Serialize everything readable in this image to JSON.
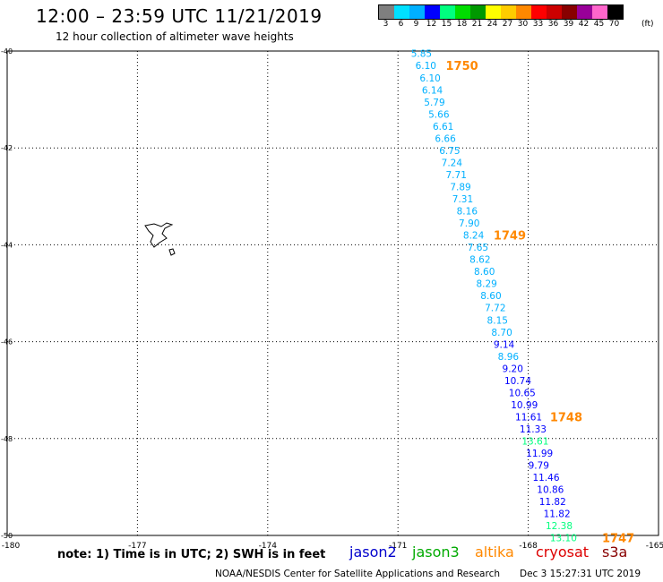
{
  "header": {
    "title": "12:00 – 23:59 UTC 11/21/2019",
    "subtitle": "12 hour collection of altimeter wave heights"
  },
  "scale": {
    "labels": [
      "3",
      "6",
      "9",
      "12",
      "15",
      "18",
      "21",
      "24",
      "27",
      "30",
      "33",
      "36",
      "39",
      "42",
      "45",
      "70"
    ],
    "unit": "(ft)",
    "colors": [
      "#7f7f7f",
      "#00e0ff",
      "#00b0ff",
      "#0000ff",
      "#00ff7f",
      "#00dd00",
      "#009900",
      "#ffff00",
      "#ffcc00",
      "#ff8800",
      "#ff0000",
      "#cc0000",
      "#880000",
      "#990099",
      "#ff66cc",
      "#000000"
    ]
  },
  "footer": {
    "note": "note:  1) Time is in UTC;  2) SWH is in feet",
    "credit": "NOAA/NESDIS Center for Satellite Applications and Research",
    "date": "Dec  3 15:27:31 UTC 2019"
  },
  "legend": [
    {
      "label": "jason2",
      "color": "#0000cc"
    },
    {
      "label": "jason3",
      "color": "#00aa00"
    },
    {
      "label": "altika",
      "color": "#ff8800"
    },
    {
      "label": "cryosat",
      "color": "#dd0000"
    },
    {
      "label": "s3a",
      "color": "#880000"
    }
  ],
  "chart_data": {
    "type": "scatter",
    "title": "12:00 – 23:59 UTC 11/21/2019",
    "xlim": [
      -180,
      -165
    ],
    "ylim": [
      -50,
      -40
    ],
    "x_ticks": [
      "-180",
      "-177",
      "-174",
      "-171",
      "-168",
      "-165"
    ],
    "y_ticks": [
      "-40",
      "-42",
      "-44",
      "-46",
      "-48",
      "-50"
    ],
    "grid": true,
    "points": [
      {
        "x": -170.7,
        "y": -40.05,
        "label": "5.85",
        "color": "#00b0ff"
      },
      {
        "x": -170.6,
        "y": -40.3,
        "label": "6.10",
        "color": "#00b0ff"
      },
      {
        "x": -170.5,
        "y": -40.55,
        "label": "6.10",
        "color": "#00b0ff"
      },
      {
        "x": -170.45,
        "y": -40.8,
        "label": "6.14",
        "color": "#00b0ff"
      },
      {
        "x": -170.4,
        "y": -41.05,
        "label": "5.79",
        "color": "#00b0ff"
      },
      {
        "x": -170.3,
        "y": -41.3,
        "label": "5.66",
        "color": "#00b0ff"
      },
      {
        "x": -170.2,
        "y": -41.55,
        "label": "6.61",
        "color": "#00b0ff"
      },
      {
        "x": -170.15,
        "y": -41.8,
        "label": "6.66",
        "color": "#00b0ff"
      },
      {
        "x": -170.05,
        "y": -42.05,
        "label": "6.75",
        "color": "#00b0ff"
      },
      {
        "x": -170.0,
        "y": -42.3,
        "label": "7.24",
        "color": "#00b0ff"
      },
      {
        "x": -169.9,
        "y": -42.55,
        "label": "7.71",
        "color": "#00b0ff"
      },
      {
        "x": -169.8,
        "y": -42.8,
        "label": "7.89",
        "color": "#00b0ff"
      },
      {
        "x": -169.75,
        "y": -43.05,
        "label": "7.31",
        "color": "#00b0ff"
      },
      {
        "x": -169.65,
        "y": -43.3,
        "label": "8.16",
        "color": "#00b0ff"
      },
      {
        "x": -169.6,
        "y": -43.55,
        "label": "7.90",
        "color": "#00b0ff"
      },
      {
        "x": -169.5,
        "y": -43.8,
        "label": "8.24",
        "color": "#00b0ff"
      },
      {
        "x": -169.4,
        "y": -44.05,
        "label": "7.65",
        "color": "#00b0ff"
      },
      {
        "x": -169.35,
        "y": -44.3,
        "label": "8.62",
        "color": "#00b0ff"
      },
      {
        "x": -169.25,
        "y": -44.55,
        "label": "8.60",
        "color": "#00b0ff"
      },
      {
        "x": -169.2,
        "y": -44.8,
        "label": "8.29",
        "color": "#00b0ff"
      },
      {
        "x": -169.1,
        "y": -45.05,
        "label": "8.60",
        "color": "#00b0ff"
      },
      {
        "x": -169.0,
        "y": -45.3,
        "label": "7.72",
        "color": "#00b0ff"
      },
      {
        "x": -168.95,
        "y": -45.55,
        "label": "8.15",
        "color": "#00b0ff"
      },
      {
        "x": -168.85,
        "y": -45.8,
        "label": "8.70",
        "color": "#00b0ff"
      },
      {
        "x": -168.8,
        "y": -46.05,
        "label": "9.14",
        "color": "#0000ff"
      },
      {
        "x": -168.7,
        "y": -46.3,
        "label": "8.96",
        "color": "#00b0ff"
      },
      {
        "x": -168.6,
        "y": -46.55,
        "label": "9.20",
        "color": "#0000ff"
      },
      {
        "x": -168.55,
        "y": -46.8,
        "label": "10.74",
        "color": "#0000ff"
      },
      {
        "x": -168.45,
        "y": -47.05,
        "label": "10.65",
        "color": "#0000ff"
      },
      {
        "x": -168.4,
        "y": -47.3,
        "label": "10.99",
        "color": "#0000ff"
      },
      {
        "x": -168.3,
        "y": -47.55,
        "label": "11.61",
        "color": "#0000ff"
      },
      {
        "x": -168.2,
        "y": -47.8,
        "label": "11.33",
        "color": "#0000ff"
      },
      {
        "x": -168.15,
        "y": -48.05,
        "label": "13.61",
        "color": "#00ff7f"
      },
      {
        "x": -168.05,
        "y": -48.3,
        "label": "11.99",
        "color": "#0000ff"
      },
      {
        "x": -168.0,
        "y": -48.55,
        "label": "9.79",
        "color": "#0000ff"
      },
      {
        "x": -167.9,
        "y": -48.8,
        "label": "11.46",
        "color": "#0000ff"
      },
      {
        "x": -167.8,
        "y": -49.05,
        "label": "10.86",
        "color": "#0000ff"
      },
      {
        "x": -167.75,
        "y": -49.3,
        "label": "11.82",
        "color": "#0000ff"
      },
      {
        "x": -167.65,
        "y": -49.55,
        "label": "11.82",
        "color": "#0000ff"
      },
      {
        "x": -167.6,
        "y": -49.8,
        "label": "12.38",
        "color": "#00ff7f"
      },
      {
        "x": -167.5,
        "y": -50.05,
        "label": "13.10",
        "color": "#00ff7f"
      }
    ],
    "time_labels": [
      {
        "x": -169.9,
        "y": -40.3,
        "label": "1750",
        "color": "#ff8800"
      },
      {
        "x": -168.8,
        "y": -43.8,
        "label": "1749",
        "color": "#ff8800"
      },
      {
        "x": -167.5,
        "y": -47.55,
        "label": "1748",
        "color": "#ff8800"
      },
      {
        "x": -166.3,
        "y": -50.05,
        "label": "1747",
        "color": "#ff8800"
      }
    ]
  }
}
